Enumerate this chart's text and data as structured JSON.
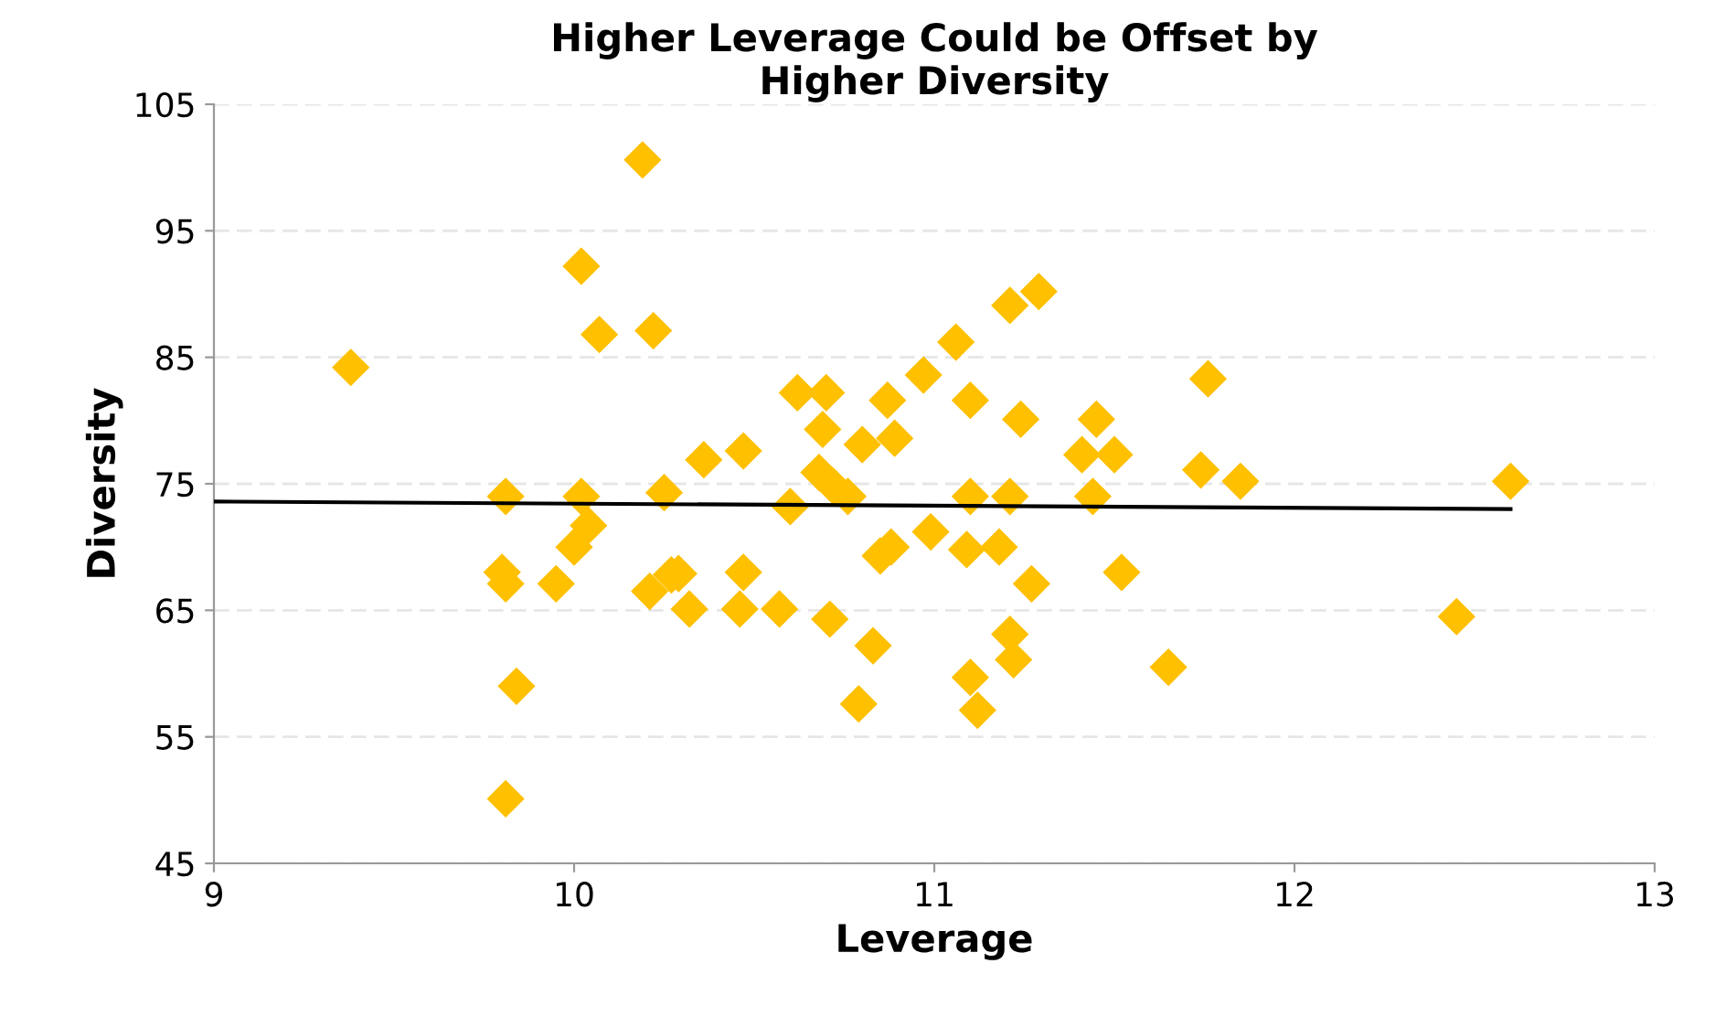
{
  "chart_data": {
    "type": "scatter",
    "title": "Higher Leverage Could be Offset by\nHigher Diversity",
    "xlabel": "Leverage",
    "ylabel": "Diversity",
    "xlim": [
      9,
      13
    ],
    "xticks": [
      9,
      10,
      11,
      12,
      13
    ],
    "ylim": [
      45,
      105
    ],
    "yticks": [
      45,
      55,
      65,
      75,
      85,
      95,
      105
    ],
    "grid": "y",
    "marker": "diamond",
    "series": [
      {
        "color": "#ffc000",
        "x": [
          9.38,
          9.81,
          9.8,
          9.81,
          9.84,
          9.81,
          9.95,
          10.0,
          10.02,
          10.02,
          10.04,
          10.07,
          10.19,
          10.21,
          10.22,
          10.25,
          10.27,
          10.29,
          10.32,
          10.36,
          10.46,
          10.47,
          10.47,
          10.57,
          10.6,
          10.62,
          10.68,
          10.69,
          10.7,
          10.71,
          10.72,
          10.76,
          10.79,
          10.8,
          10.83,
          10.85,
          10.87,
          10.88,
          10.89,
          10.97,
          10.99,
          11.06,
          11.09,
          11.1,
          11.1,
          11.1,
          11.12,
          11.18,
          11.21,
          11.21,
          11.21,
          11.22,
          11.24,
          11.27,
          11.29,
          11.41,
          11.44,
          11.45,
          11.5,
          11.52,
          11.65,
          11.74,
          11.76,
          11.85,
          12.45,
          12.6
        ],
        "values": [
          84.2,
          74.0,
          68.0,
          67.1,
          59.0,
          50.1,
          67.1,
          70.0,
          74.0,
          92.2,
          71.7,
          86.8,
          100.6,
          66.5,
          87.1,
          74.3,
          67.8,
          67.9,
          65.1,
          76.9,
          65.1,
          77.6,
          68.0,
          65.1,
          73.2,
          82.2,
          75.9,
          79.3,
          82.2,
          64.3,
          74.8,
          74.0,
          57.6,
          78.1,
          62.2,
          69.3,
          81.6,
          70.0,
          78.6,
          83.6,
          71.2,
          86.2,
          69.8,
          74.0,
          81.6,
          59.7,
          57.1,
          70.0,
          74.0,
          63.1,
          89.1,
          61.1,
          80.1,
          67.1,
          90.2,
          77.3,
          74.0,
          80.1,
          77.3,
          68.0,
          60.5,
          76.1,
          83.3,
          75.2,
          64.5,
          75.2
        ]
      },
      {
        "type": "line",
        "color": "#000000",
        "marker": "none",
        "line_style": "solid",
        "x": [
          9,
          12.6
        ],
        "values": [
          73.6,
          73.0
        ]
      }
    ]
  }
}
